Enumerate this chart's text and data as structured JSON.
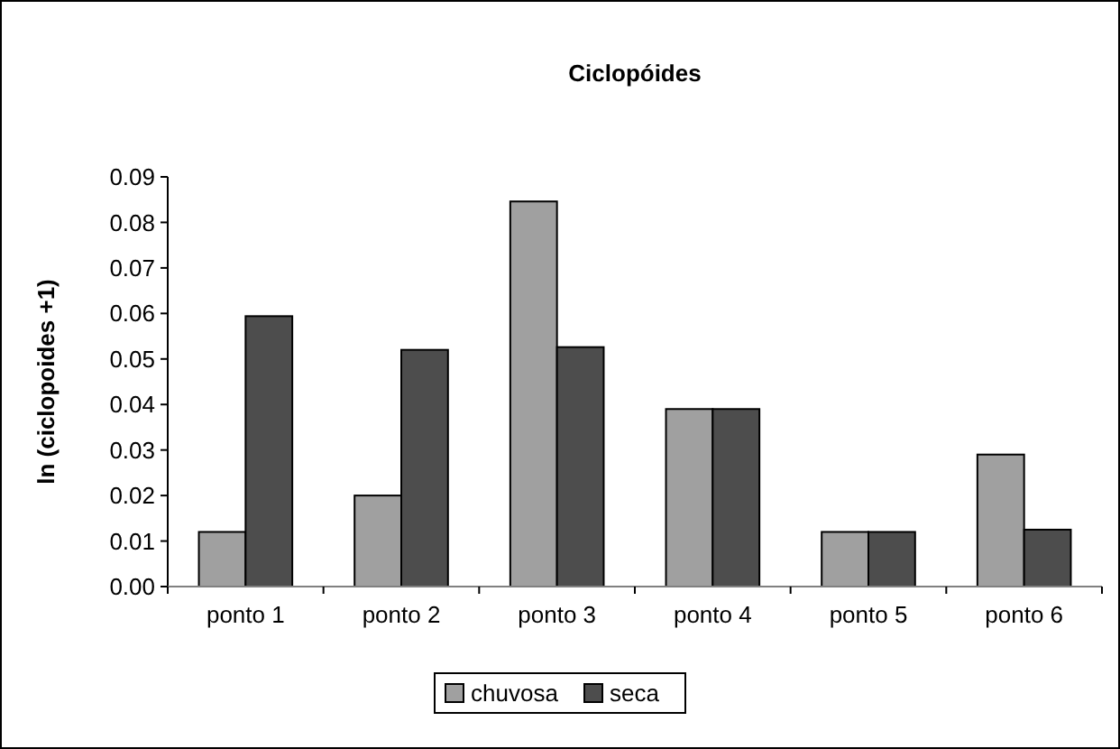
{
  "chart_data": {
    "type": "bar",
    "title": "Ciclopóides",
    "ylabel": "ln (ciclopoides +1)",
    "categories": [
      "ponto 1",
      "ponto 2",
      "ponto 3",
      "ponto 4",
      "ponto 5",
      "ponto 6"
    ],
    "series": [
      {
        "name": "chuvosa",
        "color": "#a0a0a0",
        "values": [
          0.012,
          0.02,
          0.0846,
          0.039,
          0.012,
          0.029
        ]
      },
      {
        "name": "seca",
        "color": "#4d4d4d",
        "values": [
          0.0594,
          0.052,
          0.0526,
          0.039,
          0.012,
          0.0125
        ]
      }
    ],
    "ylim": [
      0,
      0.09
    ],
    "yticks": [
      {
        "value": 0,
        "label": "0.00"
      },
      {
        "value": 0.01,
        "label": "0.01"
      },
      {
        "value": 0.02,
        "label": "0.02"
      },
      {
        "value": 0.03,
        "label": "0.03"
      },
      {
        "value": 0.04,
        "label": "0.04"
      },
      {
        "value": 0.05,
        "label": "0.05"
      },
      {
        "value": 0.06,
        "label": "0.06"
      },
      {
        "value": 0.07,
        "label": "0.07"
      },
      {
        "value": 0.08,
        "label": "0.08"
      },
      {
        "value": 0.09,
        "label": "0.09"
      }
    ],
    "grid": false,
    "legend": "bottom"
  }
}
